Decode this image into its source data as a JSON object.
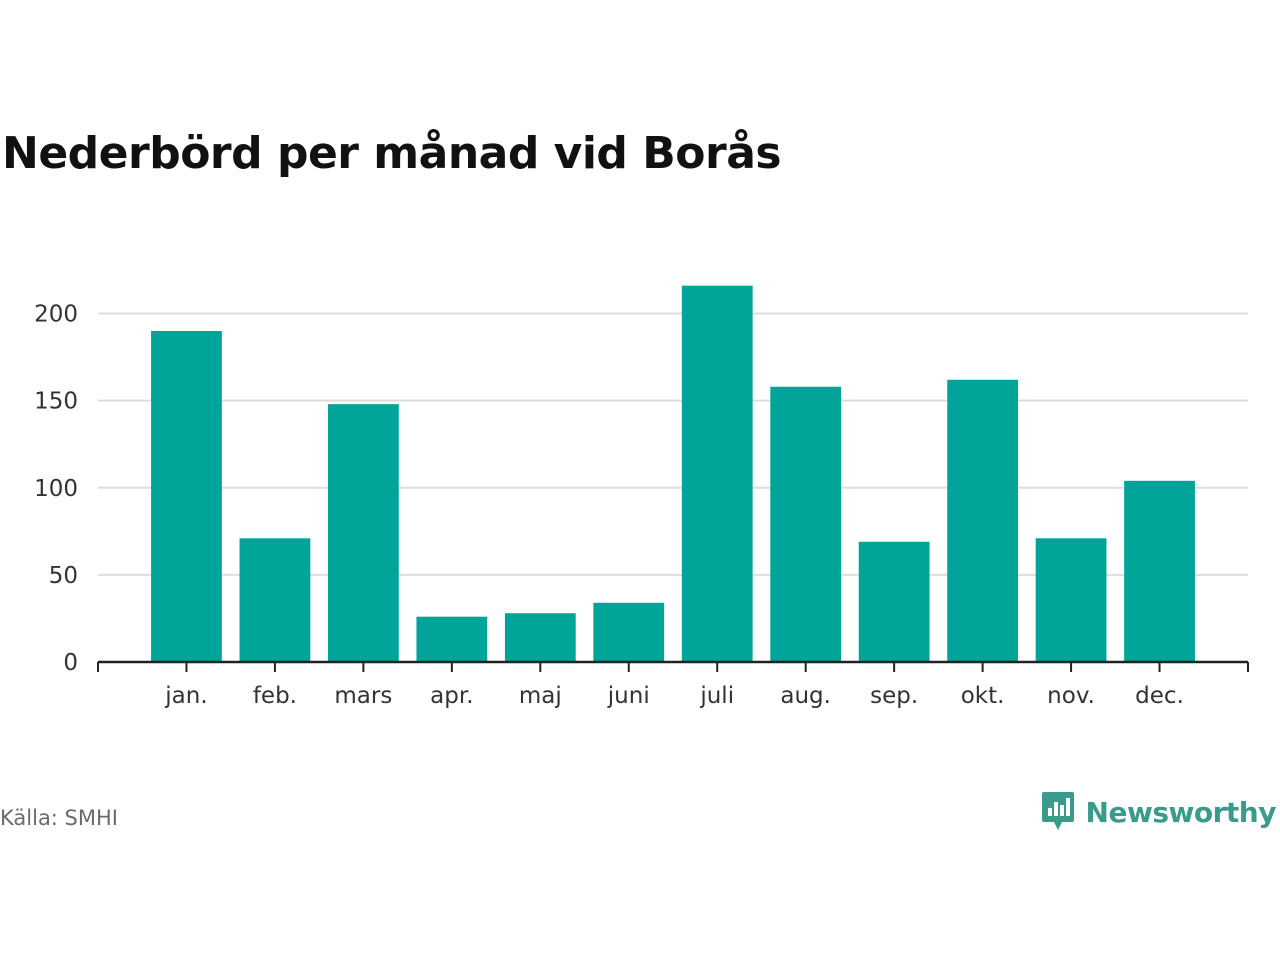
{
  "chart_data": {
    "type": "bar",
    "title": "Nederbörd per månad vid Borås",
    "categories": [
      "jan.",
      "feb.",
      "mars",
      "apr.",
      "maj",
      "juni",
      "juli",
      "aug.",
      "sep.",
      "okt.",
      "nov.",
      "dec."
    ],
    "values": [
      190,
      71,
      148,
      26,
      28,
      34,
      216,
      158,
      69,
      162,
      71,
      104
    ],
    "ylim": [
      0,
      225
    ],
    "yticks": [
      0,
      50,
      100,
      150,
      200
    ],
    "grid": true,
    "bar_color": "#00a498",
    "gridline_color": "#dddddd",
    "axis_color": "#222222"
  },
  "footer": {
    "source": "Källa: SMHI",
    "brand_name": "Newsworthy",
    "brand_icon": "newsworthy-logo-icon",
    "brand_color": "#3a9a8c"
  }
}
